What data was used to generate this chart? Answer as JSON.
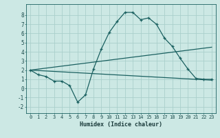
{
  "xlabel": "Humidex (Indice chaleur)",
  "xlim": [
    -0.5,
    23.5
  ],
  "ylim": [
    -2.7,
    9.2
  ],
  "xticks": [
    0,
    1,
    2,
    3,
    4,
    5,
    6,
    7,
    8,
    9,
    10,
    11,
    12,
    13,
    14,
    15,
    16,
    17,
    18,
    19,
    20,
    21,
    22,
    23
  ],
  "yticks": [
    -2,
    -1,
    0,
    1,
    2,
    3,
    4,
    5,
    6,
    7,
    8
  ],
  "bg_color": "#cce8e4",
  "grid_color": "#aacfcb",
  "line_color": "#1a6060",
  "line1_x": [
    0,
    1,
    2,
    3,
    4,
    5,
    6,
    7,
    8,
    9,
    10,
    11,
    12,
    13,
    14,
    15,
    16,
    17,
    18,
    19,
    20,
    21,
    22,
    23
  ],
  "line1_y": [
    2.0,
    1.5,
    1.3,
    0.8,
    0.8,
    0.3,
    -1.5,
    -0.7,
    2.1,
    4.3,
    6.1,
    7.3,
    8.3,
    8.3,
    7.5,
    7.7,
    7.0,
    5.5,
    4.6,
    3.3,
    2.1,
    1.1,
    1.0,
    1.0
  ],
  "line2_x": [
    0,
    23
  ],
  "line2_y": [
    2.0,
    0.9
  ],
  "line3_x": [
    0,
    23
  ],
  "line3_y": [
    2.0,
    4.5
  ],
  "tick_fontsize": 5.0,
  "label_fontsize": 6.0
}
